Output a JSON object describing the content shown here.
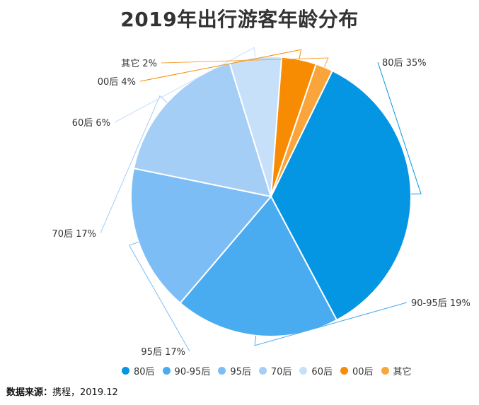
{
  "chart_data": {
    "type": "pie",
    "title": "2019年出行游客年龄分布",
    "slices": [
      {
        "label": "80后",
        "value": 35,
        "value_text": "35%",
        "color": "#0596e3"
      },
      {
        "label": "90-95后",
        "value": 19,
        "value_text": "19%",
        "color": "#49abf0"
      },
      {
        "label": "95后",
        "value": 17,
        "value_text": "17%",
        "color": "#7bbdf4"
      },
      {
        "label": "70后",
        "value": 17,
        "value_text": "17%",
        "color": "#a5cef6"
      },
      {
        "label": "60后",
        "value": 6,
        "value_text": "6%",
        "color": "#c7e0f9"
      },
      {
        "label": "00后",
        "value": 4,
        "value_text": "4%",
        "color": "#f78b02"
      },
      {
        "label": "其它",
        "value": 2,
        "value_text": "2%",
        "color": "#f9a53c"
      }
    ],
    "legend": [
      "80后",
      "90-95后",
      "95后",
      "70后",
      "60后",
      "00后",
      "其它"
    ],
    "legend_position": "bottom"
  },
  "source": {
    "label": "数据来源：",
    "text": "携程，2019.12"
  }
}
